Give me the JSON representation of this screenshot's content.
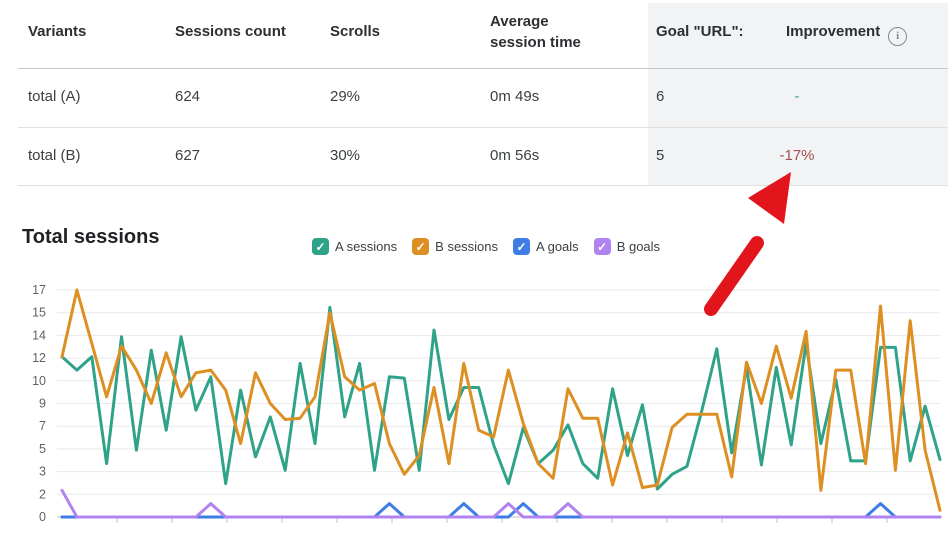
{
  "table": {
    "headers": [
      "Variants",
      "Sessions count",
      "Scrolls",
      "Average session time",
      "Goal \"URL\":",
      "Improvement"
    ],
    "info_icon_glyph": "i",
    "rows": [
      {
        "variant": "total (A)",
        "sessions": "624",
        "scrolls": "29%",
        "avg_time": "0m 49s",
        "goal": "6",
        "improvement": "-",
        "improvement_color": "#3aa08f"
      },
      {
        "variant": "total (B)",
        "sessions": "627",
        "scrolls": "30%",
        "avg_time": "0m 56s",
        "goal": "5",
        "improvement": "-17%",
        "improvement_color": "#a3514d"
      }
    ]
  },
  "chart": {
    "title": "Total sessions",
    "legend": [
      {
        "label": "A sessions",
        "checked": true,
        "check_glyph": "✓"
      },
      {
        "label": "B sessions",
        "checked": true,
        "check_glyph": "✓"
      },
      {
        "label": "A goals",
        "checked": true,
        "check_glyph": "✓"
      },
      {
        "label": "B goals",
        "checked": true,
        "check_glyph": "✓"
      }
    ]
  },
  "annotation_arrow": {
    "color": "#e3151c",
    "points_at": "-17%"
  },
  "chart_data": {
    "type": "line",
    "title": "Total sessions",
    "xlabel": "",
    "ylabel": "",
    "ylim": [
      0,
      17
    ],
    "grid": true,
    "legend_position": "top",
    "y_tick_labels": [
      "0",
      "2",
      "3",
      "5",
      "7",
      "9",
      "10",
      "12",
      "14",
      "15",
      "17"
    ],
    "x_tick_count": 15,
    "series": [
      {
        "name": "A sessions",
        "color": "#2fa38a",
        "values": [
          12,
          11,
          12,
          4,
          13.5,
          5,
          12.5,
          6.5,
          13.5,
          8,
          10.5,
          2.5,
          9.5,
          4.5,
          7.5,
          3.5,
          11.5,
          5.5,
          15.7,
          7.5,
          11.5,
          3.5,
          10.5,
          10.4,
          3.5,
          14,
          7.3,
          9.7,
          9.7,
          5.4,
          2.5,
          6.7,
          4,
          5,
          6.9,
          4,
          2.9,
          9.6,
          4.6,
          8.4,
          2.1,
          3.2,
          3.8,
          8,
          12.6,
          4.8,
          11.2,
          3.9,
          11.2,
          5.4,
          13,
          5.5,
          10.3,
          4.2,
          4.2,
          12.7,
          12.7,
          4.2,
          8.3,
          4.3
        ]
      },
      {
        "name": "B sessions",
        "color": "#dd8f22",
        "values": [
          12,
          17,
          13,
          9,
          12.8,
          11,
          8.5,
          12.3,
          9,
          10.8,
          11,
          9.5,
          5.5,
          10.8,
          8.5,
          7.3,
          7.4,
          9,
          15.3,
          10.5,
          9.5,
          10,
          5.5,
          3.2,
          4.6,
          9.7,
          4,
          11.5,
          6.5,
          6,
          11,
          7,
          4,
          2.9,
          9.6,
          7.4,
          7.4,
          2.4,
          6.3,
          2.2,
          2.4,
          6.7,
          7.7,
          7.7,
          7.7,
          3,
          11.6,
          8.5,
          12.8,
          8.9,
          13.9,
          2,
          11,
          11,
          4,
          15.8,
          3.5,
          14.7,
          5,
          0.5
        ]
      },
      {
        "name": "A goals",
        "color": "#3d7de4",
        "values": [
          0,
          0,
          0,
          0,
          0,
          0,
          0,
          0,
          0,
          0,
          0,
          0,
          0,
          0,
          0,
          0,
          0,
          0,
          0,
          0,
          0,
          0,
          1,
          0,
          0,
          0,
          0,
          1,
          0,
          0,
          0,
          1,
          0,
          0,
          0,
          0,
          0,
          0,
          0,
          0,
          0,
          0,
          0,
          0,
          0,
          0,
          0,
          0,
          0,
          0,
          0,
          0,
          0,
          0,
          0,
          1,
          0,
          0,
          0,
          0
        ]
      },
      {
        "name": "B goals",
        "color": "#b183f0",
        "values": [
          2,
          0,
          0,
          0,
          0,
          0,
          0,
          0,
          0,
          0,
          1,
          0,
          0,
          0,
          0,
          0,
          0,
          0,
          0,
          0,
          0,
          0,
          0,
          0,
          0,
          0,
          0,
          0,
          0,
          0,
          1,
          0,
          0,
          0,
          1,
          0,
          0,
          0,
          0,
          0,
          0,
          0,
          0,
          0,
          0,
          0,
          0,
          0,
          0,
          0,
          0,
          0,
          0,
          0,
          0,
          0,
          0,
          0,
          0,
          0
        ]
      }
    ]
  }
}
